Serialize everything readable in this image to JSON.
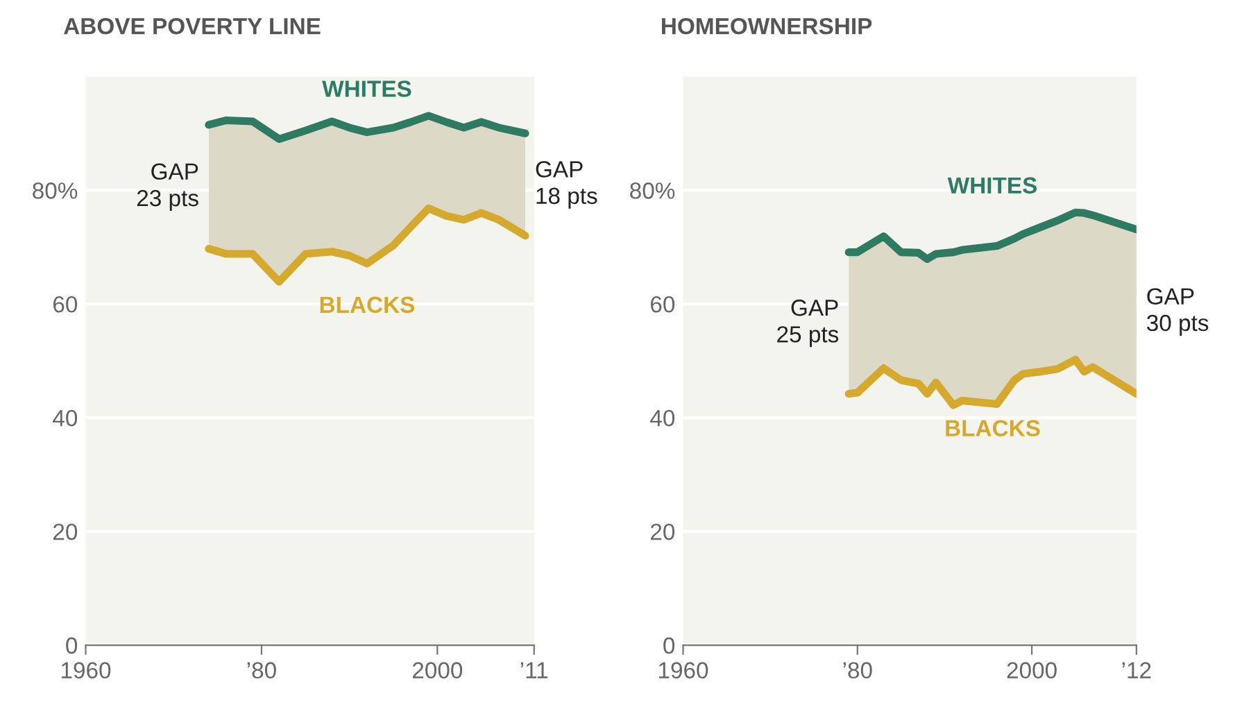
{
  "chart_data": [
    {
      "type": "line",
      "title": "ABOVE POVERTY LINE",
      "xlim": [
        1960,
        2011
      ],
      "ylim": [
        0,
        100
      ],
      "xticks": [
        1960,
        {
          "value": 1980,
          "label": "’80"
        },
        2000,
        {
          "value": 2011,
          "label": "’11"
        }
      ],
      "yticks": [
        0,
        20,
        40,
        60,
        {
          "value": 80,
          "label": "80%"
        }
      ],
      "grid": "y",
      "legend": false,
      "series": [
        {
          "name": "WHITES",
          "color": "#2e7a63",
          "x": [
            1974,
            1976,
            1979,
            1982,
            1985,
            1988,
            1990,
            1992,
            1995,
            1997,
            1999,
            2001,
            2003,
            2005,
            2007,
            2010
          ],
          "values": [
            91.5,
            92.3,
            92.1,
            89,
            90.5,
            92.1,
            91,
            90.2,
            91,
            92,
            93.1,
            92,
            91,
            92,
            91,
            90
          ],
          "lower": [
            69.7,
            68.8,
            68.8,
            63.9,
            68.8,
            69.2,
            68.5,
            67.1,
            70.3,
            73.6,
            76.8,
            75.5,
            74.8,
            76,
            74.8,
            72
          ],
          "upper": [
            91.5,
            92.3,
            92.1,
            89,
            90.5,
            92.1,
            91,
            90.2,
            91,
            92,
            93.1,
            92,
            91,
            92,
            91,
            90
          ]
        },
        {
          "name": "BLACKS",
          "color": "#d4a92e",
          "x": [
            1974,
            1976,
            1979,
            1982,
            1985,
            1988,
            1990,
            1992,
            1995,
            1997,
            1999,
            2001,
            2003,
            2005,
            2007,
            2010
          ],
          "values": [
            69.7,
            68.8,
            68.8,
            63.9,
            68.8,
            69.2,
            68.5,
            67.1,
            70.3,
            73.6,
            76.8,
            75.5,
            74.8,
            76,
            74.8,
            72
          ]
        }
      ],
      "annotations": [
        "GAP\n23 pts",
        "GAP\n18 pts"
      ]
    },
    {
      "type": "line",
      "title": "HOMEOWNERSHIP",
      "xlim": [
        1960,
        2012
      ],
      "ylim": [
        0,
        100
      ],
      "xticks": [
        1960,
        {
          "value": 1980,
          "label": "’80"
        },
        2000,
        {
          "value": 2012,
          "label": "’12"
        }
      ],
      "yticks": [
        0,
        20,
        40,
        60,
        {
          "value": 80,
          "label": "80%"
        }
      ],
      "grid": "y",
      "legend": false,
      "series": [
        {
          "name": "WHITES",
          "color": "#2e7a63",
          "x": [
            1979,
            1980,
            1983,
            1985,
            1987,
            1988,
            1989,
            1991,
            1992,
            1996,
            1998,
            1999,
            2001,
            2003,
            2005,
            2006,
            2007,
            2012
          ],
          "values": [
            69.1,
            69.1,
            71.9,
            69.1,
            69,
            67.9,
            68.8,
            69.1,
            69.5,
            70.2,
            71.5,
            72.3,
            73.5,
            74.7,
            76.1,
            76,
            75.6,
            73.1
          ],
          "lower": [
            44.2,
            44.4,
            48.7,
            46.6,
            46,
            44.2,
            46.2,
            42.2,
            43,
            42.4,
            46.6,
            47.7,
            48.1,
            48.6,
            50.2,
            48.1,
            48.9,
            44.2
          ],
          "upper": [
            69.1,
            69.1,
            71.9,
            69.1,
            69,
            67.9,
            68.8,
            69.1,
            69.5,
            70.2,
            71.5,
            72.3,
            73.5,
            74.7,
            76.1,
            76,
            75.6,
            73.1
          ]
        },
        {
          "name": "BLACKS",
          "color": "#d4a92e",
          "x": [
            1979,
            1980,
            1983,
            1985,
            1987,
            1988,
            1989,
            1991,
            1992,
            1996,
            1998,
            1999,
            2001,
            2003,
            2005,
            2006,
            2007,
            2012
          ],
          "values": [
            44.2,
            44.4,
            48.7,
            46.6,
            46,
            44.2,
            46.2,
            42.2,
            43,
            42.4,
            46.6,
            47.7,
            48.1,
            48.6,
            50.2,
            48.1,
            48.9,
            44.2
          ]
        }
      ],
      "annotations": [
        "GAP\n25 pts",
        "GAP\n30 pts"
      ]
    }
  ]
}
